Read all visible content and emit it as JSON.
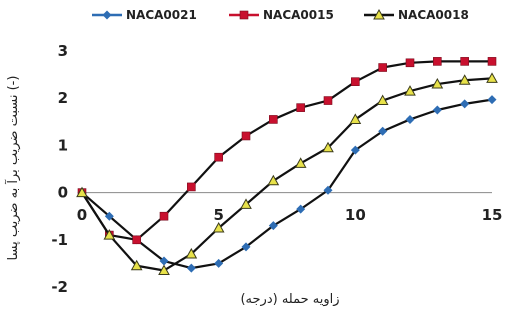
{
  "chart_data": {
    "type": "line",
    "xlabel": "زاویه حمله (درجه)",
    "ylabel": "نسبت ضریب برآ به ضریب پسا (-)",
    "xlim": [
      0,
      15
    ],
    "ylim": [
      -2,
      3
    ],
    "xticks": [
      0,
      5,
      10,
      15
    ],
    "yticks": [
      -2,
      -1,
      0,
      1,
      2,
      3
    ],
    "grid": false,
    "legend": "top",
    "series": [
      {
        "name": "NACA0021",
        "color": "#2E6DB4",
        "marker": "diamond",
        "x": [
          0,
          1,
          2,
          3,
          4,
          5,
          6,
          7,
          8,
          9,
          10,
          11,
          12,
          13,
          14,
          15
        ],
        "y": [
          0,
          -0.5,
          -1.0,
          -1.45,
          -1.6,
          -1.5,
          -1.15,
          -0.7,
          -0.35,
          0.05,
          0.9,
          1.3,
          1.55,
          1.75,
          1.88,
          1.97
        ]
      },
      {
        "name": "NACA0015",
        "color": "#C8102E",
        "marker": "square",
        "x": [
          0,
          1,
          2,
          3,
          4,
          5,
          6,
          7,
          8,
          9,
          10,
          11,
          12,
          13,
          14,
          15
        ],
        "y": [
          0,
          -0.9,
          -1.0,
          -0.5,
          0.12,
          0.75,
          1.2,
          1.55,
          1.8,
          1.95,
          2.35,
          2.65,
          2.75,
          2.78,
          2.78,
          2.78
        ]
      },
      {
        "name": "NACA0018",
        "color": "#E8E24A",
        "marker": "triangle",
        "x": [
          0,
          1,
          2,
          3,
          4,
          5,
          6,
          7,
          8,
          9,
          10,
          11,
          12,
          13,
          14,
          15
        ],
        "y": [
          0,
          -0.9,
          -1.55,
          -1.65,
          -1.3,
          -0.75,
          -0.25,
          0.25,
          0.62,
          0.95,
          1.55,
          1.95,
          2.15,
          2.3,
          2.38,
          2.42
        ]
      }
    ]
  }
}
